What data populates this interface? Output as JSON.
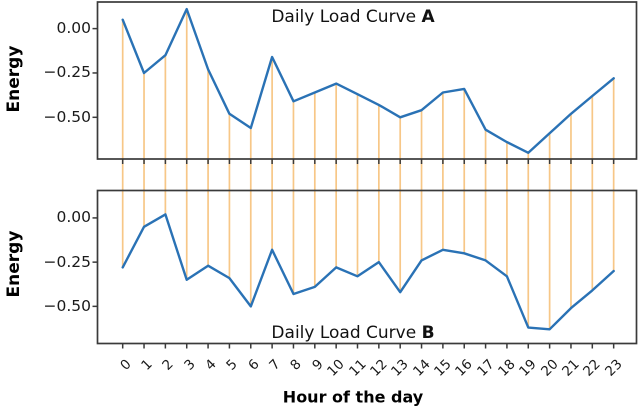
{
  "figure": {
    "background": "#ffffff",
    "xlabel": "Hour of the day",
    "x_tick_labels": [
      "0",
      "1",
      "2",
      "3",
      "4",
      "5",
      "6",
      "7",
      "8",
      "9",
      "10",
      "11",
      "12",
      "13",
      "14",
      "15",
      "16",
      "17",
      "18",
      "19",
      "20",
      "21",
      "22",
      "23"
    ],
    "colors": {
      "curve_blue": "#2a72b5",
      "stem_orange": "#f7c787",
      "spine_gray": "#3a3a3a",
      "tick_text": "#1a1a1a"
    }
  },
  "chart_data": [
    {
      "type": "line",
      "title": "Daily Load Curve A",
      "title_prefix": "Daily Load Curve ",
      "title_emphasis": "A",
      "title_position": "inside-top-center",
      "ylabel": "Energy",
      "x": [
        0,
        1,
        2,
        3,
        4,
        5,
        6,
        7,
        8,
        9,
        10,
        11,
        12,
        13,
        14,
        15,
        16,
        17,
        18,
        19,
        20,
        21,
        22,
        23
      ],
      "values": [
        0.05,
        -0.25,
        -0.15,
        0.11,
        -0.23,
        -0.48,
        -0.56,
        -0.16,
        -0.41,
        -0.36,
        -0.31,
        -0.37,
        -0.43,
        -0.5,
        -0.46,
        -0.36,
        -0.34,
        -0.57,
        -0.64,
        -0.7,
        -0.59,
        -0.48,
        -0.38,
        -0.28
      ],
      "xlim": [
        -1.18,
        24.07
      ],
      "ylim": [
        -0.735,
        0.15
      ],
      "yticks": [
        0.0,
        -0.25,
        -0.5
      ],
      "ytick_labels": [
        "0.00",
        "−0.25",
        "−0.50"
      ],
      "grid": false,
      "stems": "vertical orange lines at every hour connecting curve A point to curve B point across both subplots"
    },
    {
      "type": "line",
      "title": "Daily Load Curve B",
      "title_prefix": "Daily Load Curve ",
      "title_emphasis": "B",
      "title_position": "inside-bottom-center",
      "ylabel": "Energy",
      "x": [
        0,
        1,
        2,
        3,
        4,
        5,
        6,
        7,
        8,
        9,
        10,
        11,
        12,
        13,
        14,
        15,
        16,
        17,
        18,
        19,
        20,
        21,
        22,
        23
      ],
      "values": [
        -0.28,
        -0.05,
        0.02,
        -0.35,
        -0.27,
        -0.34,
        -0.5,
        -0.18,
        -0.43,
        -0.39,
        -0.28,
        -0.33,
        -0.25,
        -0.42,
        -0.24,
        -0.18,
        -0.2,
        -0.24,
        -0.33,
        -0.62,
        -0.63,
        -0.51,
        -0.41,
        -0.3
      ],
      "xlim": [
        -1.18,
        24.07
      ],
      "ylim": [
        -0.71,
        0.155
      ],
      "yticks": [
        0.0,
        -0.25,
        -0.5
      ],
      "ytick_labels": [
        "0.00",
        "−0.25",
        "−0.50"
      ],
      "grid": false
    }
  ]
}
